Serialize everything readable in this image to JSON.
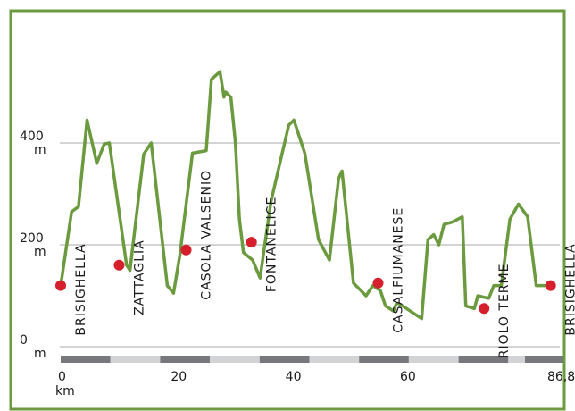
{
  "chart_data": {
    "type": "line",
    "title": "",
    "xlabel": "",
    "ylabel": "",
    "x_unit": "km",
    "y_unit": "m",
    "xlim": [
      0,
      86.8
    ],
    "ylim": [
      0,
      500
    ],
    "grid": true,
    "x_ticks": [
      {
        "value": 0,
        "label": "0"
      },
      {
        "value": 20,
        "label": "20"
      },
      {
        "value": 40,
        "label": "40"
      },
      {
        "value": 60,
        "label": "60"
      },
      {
        "value": 86.8,
        "label": "86,8"
      }
    ],
    "y_ticks": [
      {
        "value": 0,
        "label": "0",
        "unit": "m"
      },
      {
        "value": 200,
        "label": "200",
        "unit": "m"
      },
      {
        "value": 400,
        "label": "400",
        "unit": "m"
      }
    ],
    "colors": {
      "line": "#6b9a3f",
      "frame": "#6b9a3f",
      "marker": "#d61f2c",
      "grid": "#a7a9ac",
      "bar_dark": "#77787b",
      "bar_light": "#d1d3d4"
    },
    "series": [
      {
        "x": [
          0,
          1.9,
          3.1,
          4.6,
          6.3,
          7.6,
          8.5,
          11.5,
          12.1,
          14.5,
          15.8,
          18.6,
          19.7,
          20.8,
          23.0,
          25.4,
          26.3,
          27.8,
          28.5,
          28.8,
          29.7,
          30.5,
          31.2,
          31.9,
          33.5,
          34.8,
          36.7,
          39.8,
          40.7,
          42.6,
          45.0,
          46.9,
          48.5,
          49.1,
          51.1,
          53.3,
          54.5,
          55.8,
          56.7,
          58.1,
          58.6,
          59.0,
          63.0,
          64.1,
          65.1,
          66.0,
          66.9,
          68.4,
          70.1,
          70.7,
          72.2,
          72.8,
          74.7,
          75.6,
          76.9,
          78.4,
          79.9,
          81.5,
          83.0,
          85.5
        ],
        "y": [
          120,
          265,
          275,
          445,
          360,
          398,
          400,
          160,
          150,
          378,
          400,
          120,
          105,
          180,
          380,
          385,
          525,
          540,
          490,
          500,
          490,
          400,
          250,
          185,
          170,
          135,
          285,
          435,
          445,
          380,
          210,
          170,
          330,
          345,
          125,
          100,
          120,
          110,
          80,
          70,
          85,
          85,
          55,
          210,
          220,
          200,
          240,
          245,
          255,
          80,
          75,
          100,
          95,
          120,
          120,
          250,
          280,
          255,
          120,
          120
        ]
      }
    ],
    "places": [
      {
        "name": "BRISIGHELLA",
        "km": 0,
        "elevation": 120
      },
      {
        "name": "ZATTAGLIA",
        "km": 10.2,
        "elevation": 160
      },
      {
        "name": "CASOLA VALSENIO",
        "km": 21.9,
        "elevation": 190
      },
      {
        "name": "FONTANELICE",
        "km": 33.3,
        "elevation": 205
      },
      {
        "name": "CASALFIUMANESE",
        "km": 55.4,
        "elevation": 125
      },
      {
        "name": "RIOLO TERME",
        "km": 73.9,
        "elevation": 75
      },
      {
        "name": "BRISIGHELLA",
        "km": 85.5,
        "elevation": 120
      }
    ]
  }
}
